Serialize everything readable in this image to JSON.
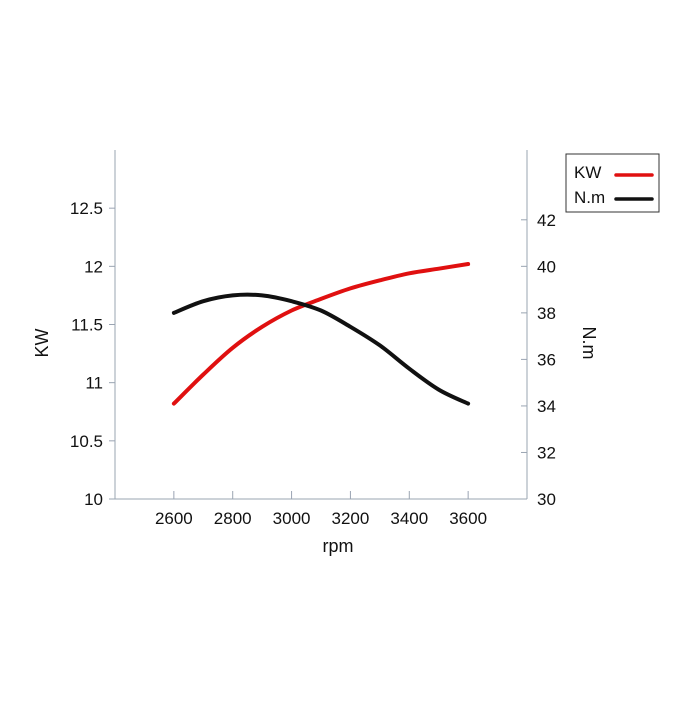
{
  "chart_data": {
    "type": "line",
    "xlabel": "rpm",
    "ylabel_left": "KW",
    "ylabel_right": "N.m",
    "xlim": [
      2400,
      3800
    ],
    "ylim_left": [
      10,
      13
    ],
    "ylim_right": [
      30,
      45
    ],
    "xticks": [
      2600,
      2800,
      3000,
      3200,
      3400,
      3600
    ],
    "yticks_left": [
      10,
      10.5,
      11,
      11.5,
      12,
      12.5
    ],
    "yticks_right": [
      30,
      32,
      34,
      36,
      38,
      40,
      42
    ],
    "legend_position": "top-right",
    "grid": false,
    "series": [
      {
        "name": "KW",
        "axis": "left",
        "color": "#e01010",
        "x": [
          2600,
          2700,
          2800,
          2900,
          3000,
          3100,
          3200,
          3300,
          3400,
          3500,
          3600
        ],
        "y": [
          10.82,
          11.07,
          11.3,
          11.48,
          11.62,
          11.72,
          11.81,
          11.88,
          11.94,
          11.98,
          12.02
        ]
      },
      {
        "name": "N.m",
        "axis": "right",
        "color": "#111111",
        "x": [
          2600,
          2700,
          2800,
          2900,
          3000,
          3100,
          3200,
          3300,
          3400,
          3500,
          3600
        ],
        "y": [
          38.0,
          38.5,
          38.75,
          38.75,
          38.5,
          38.1,
          37.4,
          36.6,
          35.6,
          34.7,
          34.1
        ]
      }
    ]
  }
}
